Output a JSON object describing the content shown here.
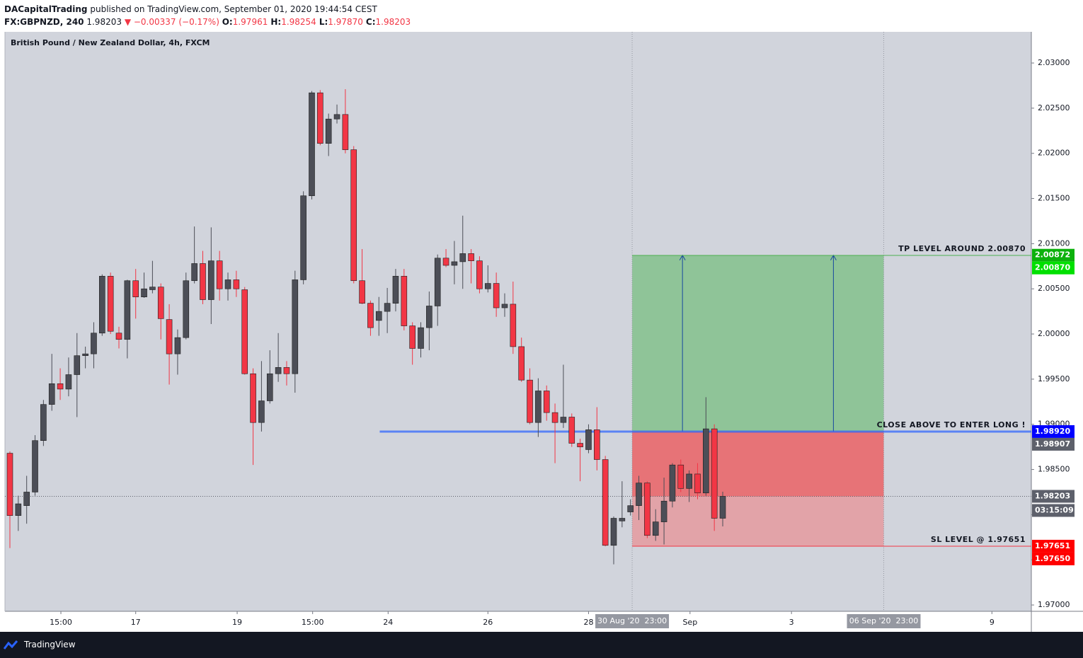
{
  "header": {
    "author": "DACapitalTrading",
    "published": "published on TradingView.com, September 01, 2020 19:44:54 CEST",
    "symbol": "FX:GBPNZD, 240",
    "price": "1.98203",
    "change": "▼ −0.00337 (−0.17%)",
    "ohlc": [
      {
        "key": "O:",
        "value": "1.97961"
      },
      {
        "key": "H:",
        "value": "1.98254"
      },
      {
        "key": "L:",
        "value": "1.97870"
      },
      {
        "key": "C:",
        "value": "1.98203"
      }
    ]
  },
  "footer": {
    "brand": "TradingView"
  },
  "chart_data": {
    "type": "candlestick",
    "title": "British Pound / New Zealand Dollar, 4h, FXCM",
    "up_color": "#4c4e57",
    "down_color": "#f23645",
    "grid": false,
    "x": [
      0,
      1,
      2,
      3,
      4,
      5,
      6,
      7,
      8,
      9,
      10,
      11,
      12,
      13,
      14,
      15,
      16,
      17,
      18,
      19,
      20,
      21,
      22,
      23,
      24,
      25,
      26,
      27,
      28,
      29,
      30,
      31,
      32,
      33,
      34,
      35,
      36,
      37,
      38,
      39,
      40,
      41,
      42,
      43,
      44,
      45,
      46,
      47,
      48,
      49,
      50,
      51,
      52,
      53,
      54,
      55,
      56,
      57,
      58,
      59,
      60,
      61,
      62,
      63,
      64,
      65,
      66,
      67,
      68,
      69,
      70,
      71,
      72,
      73,
      74,
      75,
      76,
      77,
      78,
      79,
      80,
      81,
      82,
      83,
      84,
      85
    ],
    "open": [
      1.9868,
      1.9799,
      1.981,
      1.9825,
      1.9882,
      1.9922,
      1.9945,
      1.9939,
      1.9955,
      1.9976,
      1.9978,
      2.0001,
      2.0064,
      2.0001,
      1.9994,
      2.0059,
      2.0041,
      2.0049,
      2.0052,
      2.0016,
      1.9978,
      1.9996,
      2.0059,
      2.0078,
      2.0038,
      2.0081,
      2.005,
      2.006,
      2.0049,
      1.9956,
      1.9902,
      1.9926,
      1.9956,
      1.9963,
      1.9956,
      2.006,
      2.0153,
      2.0267,
      2.0211,
      2.0238,
      2.0243,
      2.0204,
      2.0059,
      2.0034,
      2.0015,
      2.0025,
      2.0034,
      2.0064,
      2.0009,
      1.9984,
      2.0007,
      2.0031,
      2.0084,
      2.0076,
      2.008,
      2.0089,
      2.0081,
      2.005,
      2.0056,
      2.0029,
      2.0033,
      1.9986,
      1.9949,
      1.9902,
      1.9937,
      1.9913,
      1.9902,
      1.9908,
      1.9879,
      1.9872,
      1.9894,
      1.9861,
      1.9766,
      1.9793,
      1.9803,
      1.981,
      1.9835,
      1.9777,
      1.9792,
      1.9815,
      1.9855,
      1.9829,
      1.9845,
      1.9824,
      1.9895,
      1.9796
    ],
    "high": [
      1.987,
      1.9821,
      1.9843,
      1.9888,
      1.9927,
      1.9978,
      1.9962,
      1.9974,
      2.0001,
      1.9986,
      2.0013,
      2.0066,
      2.0068,
      2.0008,
      2.006,
      2.0072,
      2.0068,
      2.0081,
      2.0056,
      2.0033,
      2.0005,
      2.0068,
      2.0119,
      2.0092,
      2.0118,
      2.0092,
      2.0068,
      2.007,
      2.0052,
      1.9962,
      1.997,
      1.9982,
      2.0001,
      1.997,
      2.007,
      2.0158,
      2.0269,
      2.027,
      2.0244,
      2.0254,
      2.0271,
      2.0208,
      2.0094,
      2.0037,
      2.0041,
      2.0051,
      2.0072,
      2.0072,
      2.0013,
      2.0013,
      2.0047,
      2.0088,
      2.0094,
      2.0103,
      2.0131,
      2.0094,
      2.0086,
      2.0076,
      2.0068,
      2.0045,
      2.0058,
      1.9996,
      1.9962,
      1.9951,
      1.9943,
      1.9923,
      1.9966,
      1.9912,
      1.9884,
      1.99,
      1.9919,
      1.9865,
      1.9798,
      1.9837,
      1.9817,
      1.9843,
      1.9837,
      1.9806,
      1.9841,
      1.9857,
      1.9861,
      1.9849,
      1.9857,
      1.993,
      1.99,
      1.98254
    ],
    "low": [
      1.9763,
      1.9782,
      1.979,
      1.9821,
      1.9876,
      1.9915,
      1.9927,
      1.9931,
      1.9908,
      1.9962,
      1.9962,
      1.9998,
      2.0,
      1.9984,
      1.9973,
      2.0017,
      2.004,
      2.0045,
      1.9994,
      1.9944,
      1.9955,
      1.9994,
      2.0056,
      2.0033,
      2.0011,
      2.0037,
      2.0037,
      2.0041,
      1.9955,
      1.9855,
      1.9892,
      1.9923,
      1.9947,
      1.9943,
      1.9935,
      2.0055,
      2.0149,
      2.0209,
      2.0197,
      2.0233,
      2.02,
      2.0056,
      2.0033,
      1.9998,
      1.9998,
      2.0001,
      2.0025,
      2.0004,
      1.9966,
      1.9974,
      1.9982,
      2.0009,
      2.0074,
      2.0055,
      2.005,
      2.0056,
      2.0045,
      2.0046,
      2.0019,
      2.0019,
      1.9978,
      1.9947,
      1.99,
      1.9886,
      1.9904,
      1.9857,
      1.9896,
      1.9875,
      1.9837,
      1.9868,
      1.9849,
      1.9765,
      1.9745,
      1.9786,
      1.9799,
      1.9794,
      1.9774,
      1.9771,
      1.9767,
      1.9808,
      1.9825,
      1.9814,
      1.9817,
      1.9821,
      1.9782,
      1.9787
    ],
    "close": [
      1.9799,
      1.9812,
      1.9825,
      1.9882,
      1.9922,
      1.9945,
      1.9939,
      1.9955,
      1.9976,
      1.9978,
      2.0001,
      2.0064,
      2.0003,
      1.9994,
      2.0059,
      2.0041,
      2.005,
      2.0052,
      2.0017,
      1.9978,
      1.9996,
      2.0059,
      2.0078,
      2.0038,
      2.0081,
      2.005,
      2.006,
      2.005,
      1.9956,
      1.9902,
      1.9926,
      1.9956,
      1.9963,
      1.9956,
      2.006,
      2.0153,
      2.0267,
      2.0211,
      2.0238,
      2.0243,
      2.0204,
      2.0059,
      2.0034,
      2.0007,
      2.0025,
      2.0034,
      2.0064,
      2.0009,
      1.9984,
      2.0007,
      2.0031,
      2.0084,
      2.0076,
      2.008,
      2.0089,
      2.0081,
      2.005,
      2.0056,
      2.0029,
      2.0033,
      1.9986,
      1.9949,
      1.9902,
      1.9937,
      1.9913,
      1.9902,
      1.9908,
      1.9879,
      1.9875,
      1.9894,
      1.9861,
      1.9766,
      1.9796,
      1.9796,
      1.981,
      1.9835,
      1.9777,
      1.9792,
      1.9815,
      1.9855,
      1.9829,
      1.9845,
      1.9824,
      1.9895,
      1.9796,
      1.98203
    ],
    "xlim": [
      -0.59,
      121.8
    ],
    "xticks": [
      {
        "value": 6.08,
        "label": "15:00"
      },
      {
        "value": 15.0,
        "label": "17"
      },
      {
        "value": 27.1,
        "label": "19"
      },
      {
        "value": 36.1,
        "label": "15:00"
      },
      {
        "value": 45.1,
        "label": "24"
      },
      {
        "value": 57.0,
        "label": "26"
      },
      {
        "value": 69.0,
        "label": "28"
      },
      {
        "value": 81.1,
        "label": "Sep"
      },
      {
        "value": 93.2,
        "label": "3"
      },
      {
        "value": 117.1,
        "label": "9"
      }
    ],
    "ylim": [
      1.9693,
      2.03345
    ],
    "yticks": [
      {
        "value": 1.97,
        "label": "1.97000"
      },
      {
        "value": 1.975,
        "label": "1.97500"
      },
      {
        "value": 1.98,
        "label": "1.98000"
      },
      {
        "value": 1.985,
        "label": "1.98500"
      },
      {
        "value": 1.99,
        "label": "1.99000"
      },
      {
        "value": 1.995,
        "label": "1.99500"
      },
      {
        "value": 2.0,
        "label": "2.00000"
      },
      {
        "value": 2.005,
        "label": "2.00500"
      },
      {
        "value": 2.01,
        "label": "2.01000"
      },
      {
        "value": 2.015,
        "label": "2.01500"
      },
      {
        "value": 2.02,
        "label": "2.02000"
      },
      {
        "value": 2.025,
        "label": "2.02500"
      },
      {
        "value": 2.03,
        "label": "2.03000"
      }
    ],
    "last": 1.98203,
    "countdown": "03:15:09",
    "position": {
      "start": 74.2,
      "end": 104.2,
      "start_label": "30 Aug '20  23:00",
      "end_label": "06 Sep '20  23:00",
      "entry": 1.9892,
      "target": 2.00872,
      "stop": 1.97651,
      "target_color": "#8fc498",
      "stop_color": "#e2a3a8",
      "loss_color": "#e77377"
    },
    "lines": [
      {
        "text": "TP LEVEL AROUND 2.00870",
        "value": 2.0087,
        "color": "#4caf50",
        "start": 74.2
      },
      {
        "text": "CLOSE ABOVE TO ENTER LONG !",
        "value": 1.9892,
        "color": "#2962ff",
        "start": 44.1
      },
      {
        "text": "SL LEVEL @ 1.97651",
        "value": 1.97651,
        "color": "#f23645",
        "start": 74.2
      }
    ],
    "price_labels": [
      {
        "value": 2.00872,
        "label": "2.00872",
        "color": "#0cb10c"
      },
      {
        "value": 2.0087,
        "label": "2.00870",
        "color": "#00e000"
      },
      {
        "value": 1.9892,
        "label": "1.98920",
        "color": "#0000ff"
      },
      {
        "value": 1.98907,
        "label": "1.98907",
        "color": "#5d606b"
      },
      {
        "value": 1.98203,
        "label": "1.98203",
        "color": "#5d606b"
      },
      {
        "value": 1.97651,
        "label": "1.97651",
        "color": "#ff0000"
      },
      {
        "value": 1.9765,
        "label": "1.97650",
        "color": "#ff0000"
      }
    ]
  }
}
